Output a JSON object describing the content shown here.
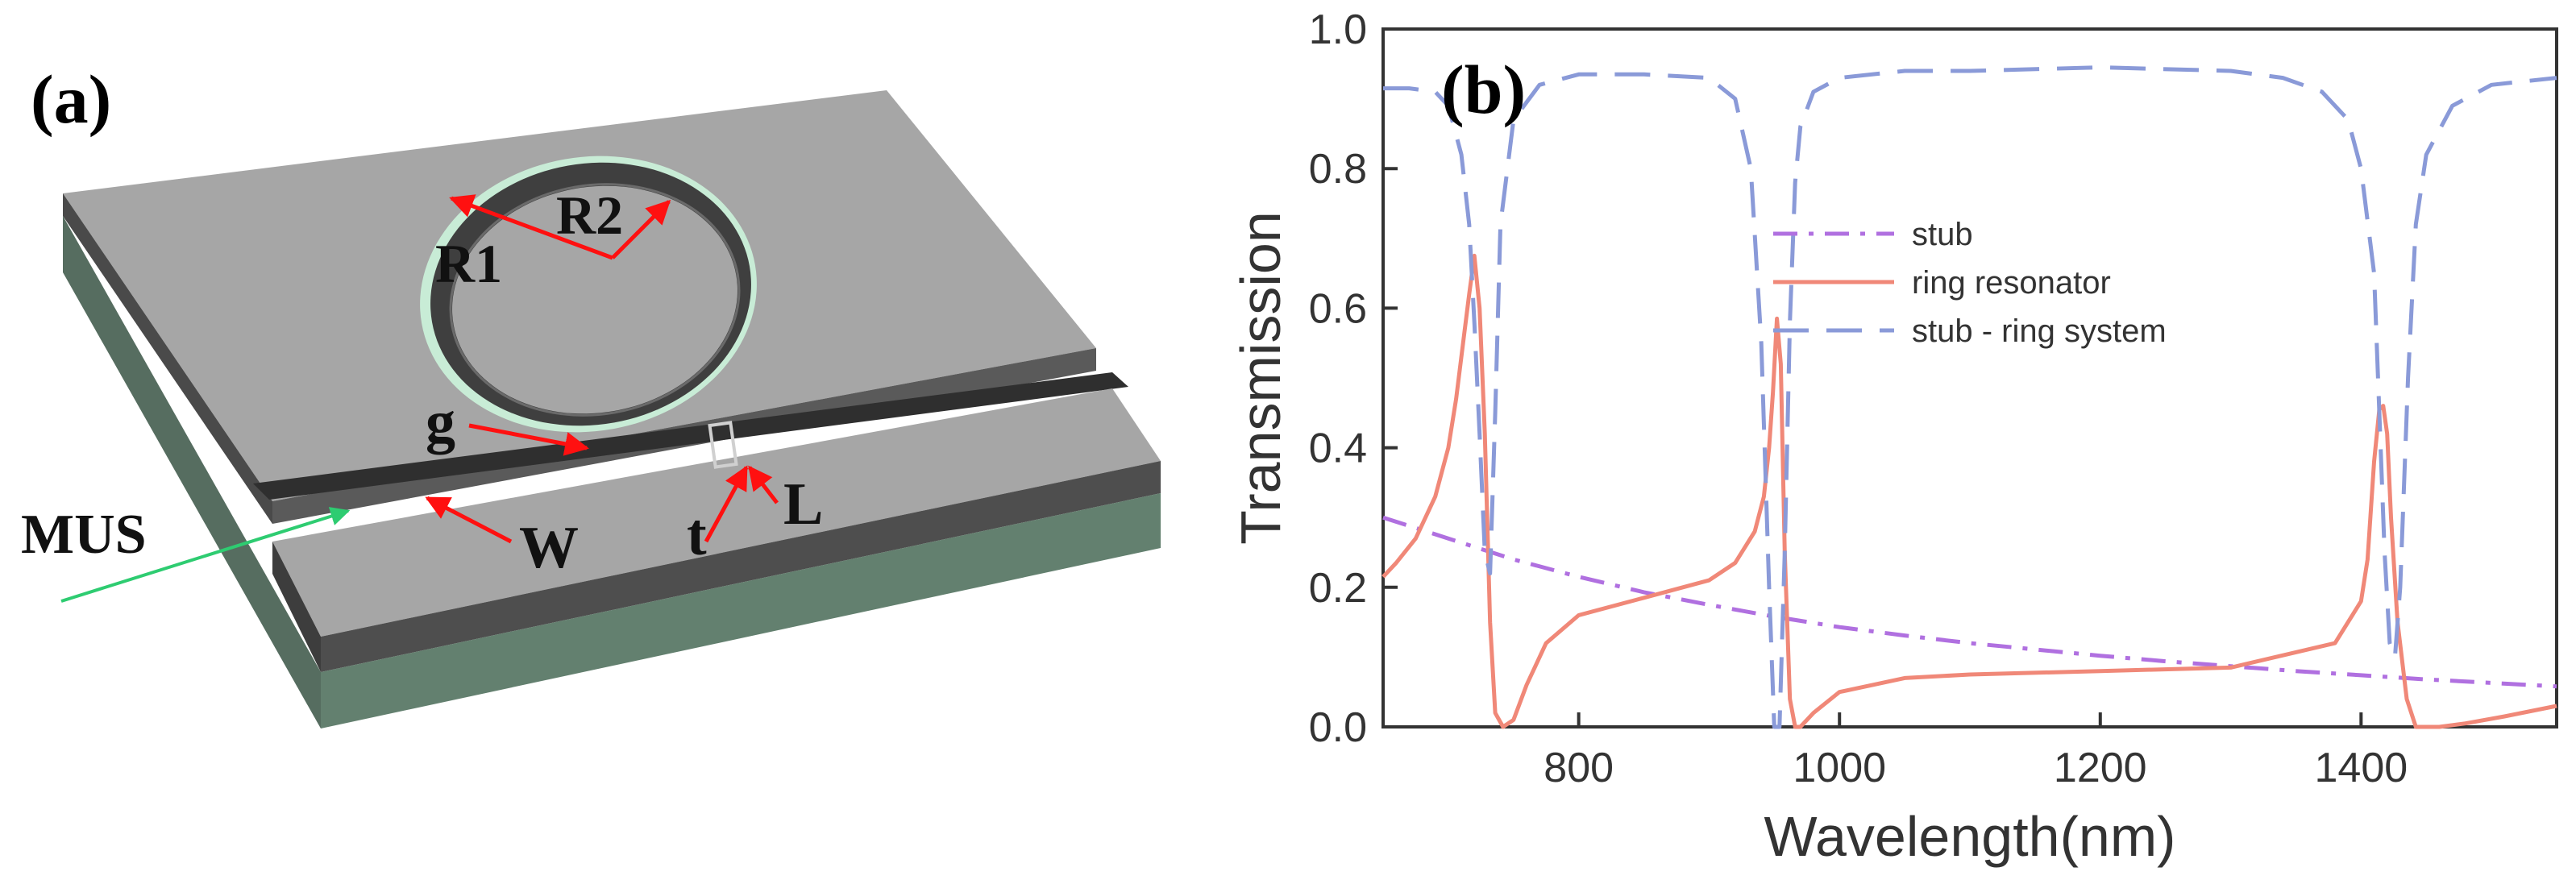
{
  "panel_a": {
    "label": "(a)",
    "annotations": {
      "r1": "R1",
      "r2": "R2",
      "g": "g",
      "w": "W",
      "t": "t",
      "l": "L",
      "mus": "MUS"
    },
    "colors": {
      "slab_top": "#a6a6a6",
      "slab_side_dark": "#505050",
      "substrate": "#5f7a6c",
      "ring_highlight": "#cde8d8",
      "arrow_red": "#ff1010",
      "arrow_green": "#2ecc71"
    }
  },
  "chart_data": {
    "type": "line",
    "panel_label": "(b)",
    "title": "",
    "xlabel": "Wavelength(nm)",
    "ylabel": "Transmission",
    "xlim": [
      650,
      1550
    ],
    "ylim": [
      0.0,
      1.0
    ],
    "xticks": [
      800,
      1000,
      1200,
      1400
    ],
    "xtick_labels": [
      "800",
      "1000",
      "1200",
      "1400"
    ],
    "yticks": [
      0.0,
      0.2,
      0.4,
      0.6,
      0.8,
      1.0
    ],
    "ytick_labels": [
      "0.0",
      "0.2",
      "0.4",
      "0.6",
      "0.8",
      "1.0"
    ],
    "legend_position": "center-right",
    "series": [
      {
        "name": "stub",
        "style": "dash-dot",
        "color": "#b070e0",
        "x": [
          650,
          700,
          750,
          800,
          850,
          900,
          950,
          1000,
          1050,
          1100,
          1150,
          1200,
          1250,
          1300,
          1350,
          1400,
          1450,
          1500,
          1550
        ],
        "y": [
          0.3,
          0.27,
          0.24,
          0.215,
          0.193,
          0.175,
          0.158,
          0.143,
          0.131,
          0.12,
          0.111,
          0.102,
          0.094,
          0.087,
          0.08,
          0.074,
          0.068,
          0.063,
          0.058
        ]
      },
      {
        "name": "ring resonator",
        "style": "solid",
        "color": "#f08878",
        "x": [
          650,
          660,
          675,
          690,
          700,
          706,
          712,
          716,
          720,
          724,
          728,
          732,
          736,
          742,
          750,
          760,
          775,
          800,
          850,
          900,
          920,
          935,
          942,
          946,
          949,
          952,
          955,
          958,
          962,
          966,
          970,
          980,
          1000,
          1050,
          1100,
          1200,
          1300,
          1380,
          1400,
          1405,
          1410,
          1414,
          1417,
          1420,
          1423,
          1428,
          1435,
          1442,
          1450,
          1460,
          1480,
          1510,
          1550
        ],
        "y": [
          0.215,
          0.235,
          0.27,
          0.33,
          0.4,
          0.47,
          0.56,
          0.62,
          0.675,
          0.6,
          0.42,
          0.15,
          0.02,
          0.0,
          0.01,
          0.06,
          0.12,
          0.16,
          0.185,
          0.21,
          0.235,
          0.28,
          0.33,
          0.4,
          0.48,
          0.585,
          0.52,
          0.25,
          0.04,
          0.0,
          0.0,
          0.02,
          0.05,
          0.07,
          0.075,
          0.08,
          0.085,
          0.12,
          0.18,
          0.24,
          0.38,
          0.455,
          0.46,
          0.42,
          0.3,
          0.15,
          0.04,
          0.0,
          0.0,
          0.0,
          0.005,
          0.015,
          0.03
        ]
      },
      {
        "name": "stub - ring system",
        "style": "dashed",
        "color": "#8a9ad8",
        "x": [
          650,
          670,
          690,
          700,
          710,
          716,
          720,
          724,
          728,
          732,
          736,
          740,
          750,
          770,
          800,
          850,
          900,
          920,
          932,
          940,
          946,
          950,
          954,
          958,
          962,
          966,
          970,
          980,
          1000,
          1050,
          1100,
          1200,
          1300,
          1340,
          1370,
          1390,
          1400,
          1410,
          1414,
          1418,
          1422,
          1426,
          1430,
          1436,
          1442,
          1450,
          1470,
          1500,
          1550
        ],
        "y": [
          0.915,
          0.915,
          0.91,
          0.89,
          0.82,
          0.72,
          0.58,
          0.42,
          0.25,
          0.22,
          0.45,
          0.72,
          0.87,
          0.92,
          0.935,
          0.935,
          0.93,
          0.9,
          0.8,
          0.55,
          0.2,
          0.0,
          0.0,
          0.25,
          0.58,
          0.78,
          0.86,
          0.91,
          0.93,
          0.94,
          0.94,
          0.945,
          0.94,
          0.93,
          0.91,
          0.87,
          0.8,
          0.65,
          0.45,
          0.25,
          0.12,
          0.1,
          0.2,
          0.5,
          0.72,
          0.82,
          0.89,
          0.92,
          0.93
        ]
      }
    ]
  }
}
